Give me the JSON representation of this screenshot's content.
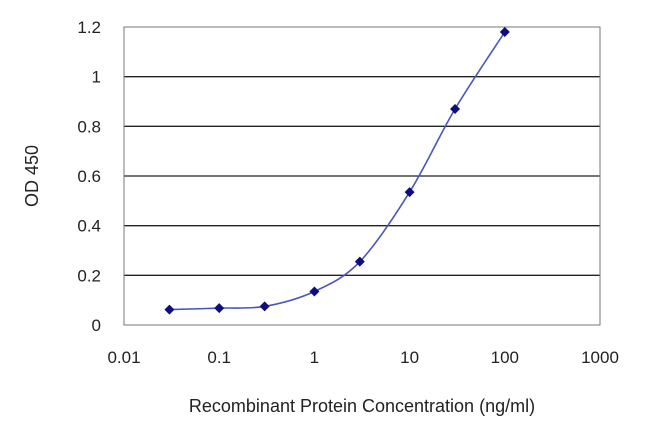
{
  "chart_data": {
    "type": "line",
    "xlabel": "Recombinant Protein Concentration (ng/ml)",
    "ylabel": "OD 450",
    "x_scale": "log",
    "xlim": [
      0.01,
      1000
    ],
    "ylim": [
      0,
      1.2
    ],
    "x_ticks": [
      0.01,
      0.1,
      1,
      10,
      100,
      1000
    ],
    "x_tick_labels": [
      "0.01",
      "0.1",
      "1",
      "10",
      "100",
      "1000"
    ],
    "y_ticks": [
      0,
      0.2,
      0.4,
      0.6,
      0.8,
      1,
      1.2
    ],
    "y_tick_labels": [
      "0",
      "0.2",
      "0.4",
      "0.6",
      "0.8",
      "1",
      "1.2"
    ],
    "grid": "horizontal",
    "legend": "none",
    "series": [
      {
        "x": [
          0.03,
          0.1,
          0.3,
          1,
          3,
          10,
          30,
          100
        ],
        "y": [
          0.062,
          0.068,
          0.075,
          0.135,
          0.255,
          0.535,
          0.87,
          1.18
        ]
      }
    ],
    "colors": {
      "line": "#4a55c0",
      "marker": "#0d0d80",
      "grid": "#222222",
      "plot_border": "#777777"
    }
  }
}
